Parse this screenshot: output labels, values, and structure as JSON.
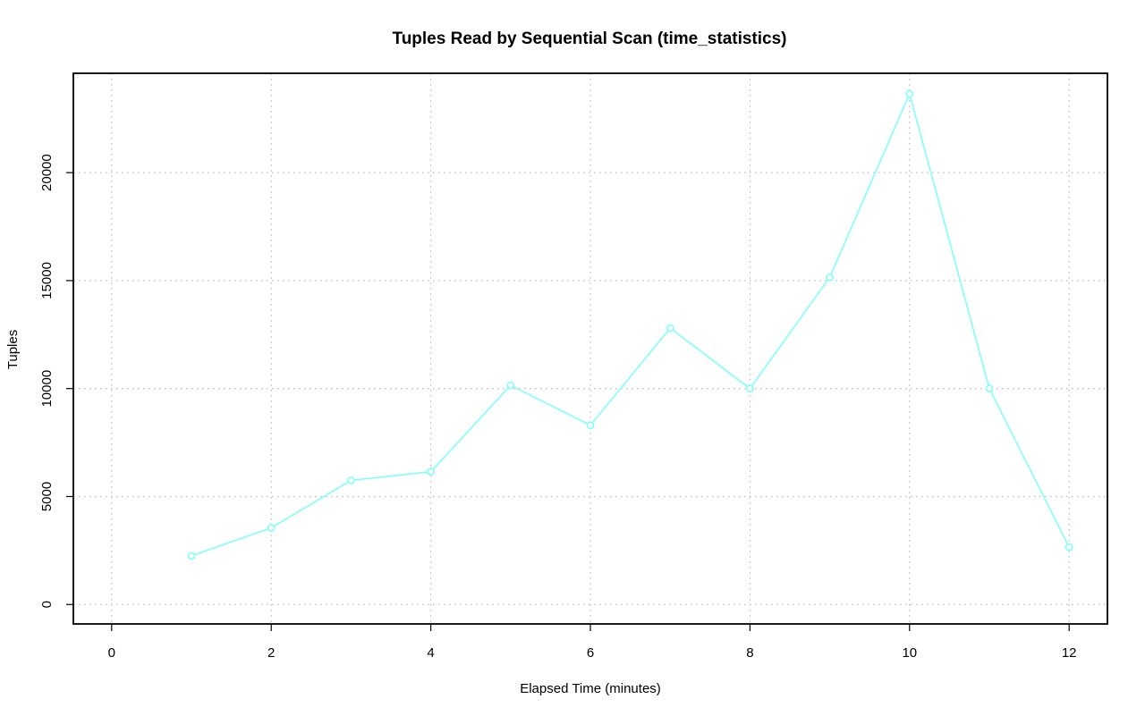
{
  "chart_data": {
    "type": "line",
    "title": "Tuples Read by Sequential Scan (time_statistics)",
    "xlabel": "Elapsed Time (minutes)",
    "ylabel": "Tuples",
    "x": [
      1,
      2,
      3,
      4,
      5,
      6,
      7,
      8,
      9,
      10,
      11,
      12
    ],
    "series": [
      {
        "values": [
          2250,
          3550,
          5750,
          6150,
          10150,
          8300,
          12800,
          10000,
          15150,
          23650,
          10000,
          2650
        ],
        "color": "#7fffff"
      }
    ],
    "xlim": [
      -0.48,
      12.48
    ],
    "ylim": [
      -900,
      24600
    ],
    "xticks": [
      0,
      2,
      4,
      6,
      8,
      10,
      12
    ],
    "yticks": [
      0,
      5000,
      10000,
      15000,
      20000
    ],
    "xtick_labels": [
      "0",
      "2",
      "4",
      "6",
      "8",
      "10",
      "12"
    ],
    "ytick_labels": [
      "0",
      "5000",
      "10000",
      "15000",
      "20000"
    ],
    "grid": true,
    "legend": "none"
  }
}
